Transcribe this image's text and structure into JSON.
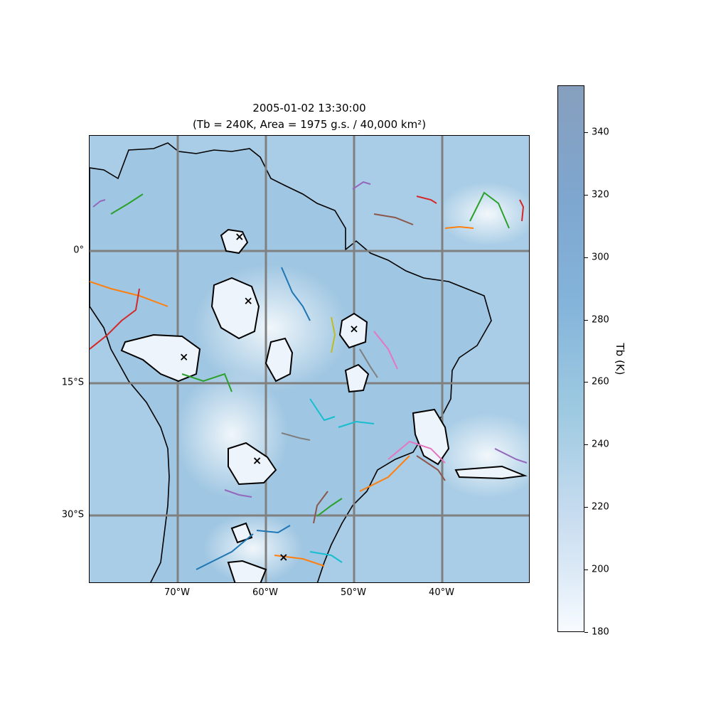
{
  "title": {
    "line1": "2005-01-02 13:30:00",
    "line2": "(Tb = 240K, Area = 1975 g.s. / 40,000 km²)"
  },
  "map": {
    "extent": {
      "lon": [
        -80,
        -30
      ],
      "lat": [
        -38.5,
        12.5
      ]
    },
    "gridlines": {
      "lon": [
        -70,
        -60,
        -50,
        -40
      ],
      "lat": [
        0,
        -15,
        -30
      ],
      "color": "#808080"
    },
    "x_tick_labels": [
      "70°W",
      "60°W",
      "50°W",
      "40°W"
    ],
    "y_tick_labels": [
      "0°",
      "15°S",
      "30°S"
    ],
    "base_color": "#a9cde6",
    "system_markers": [
      {
        "lon": -63.0,
        "lat": 1.0
      },
      {
        "lon": -62.0,
        "lat": -6.3
      },
      {
        "lon": -50.0,
        "lat": -9.5
      },
      {
        "lon": -69.3,
        "lat": -12.7
      },
      {
        "lon": -61.0,
        "lat": -24.5
      },
      {
        "lon": -58.0,
        "lat": -35.5
      }
    ]
  },
  "colorbar": {
    "label": "Tb (K)",
    "range": [
      180,
      355
    ],
    "ticks": [
      "180",
      "200",
      "220",
      "240",
      "260",
      "280",
      "300",
      "320",
      "340"
    ],
    "colors": [
      "#f7fbff",
      "#c6dbef",
      "#84b4da",
      "#879fbe"
    ]
  },
  "track_colors": [
    "#1f77b4",
    "#ff7f0e",
    "#2ca02c",
    "#d62728",
    "#9467bd",
    "#8c564b",
    "#e377c2",
    "#7f7f7f",
    "#bcbd22",
    "#17becf"
  ]
}
